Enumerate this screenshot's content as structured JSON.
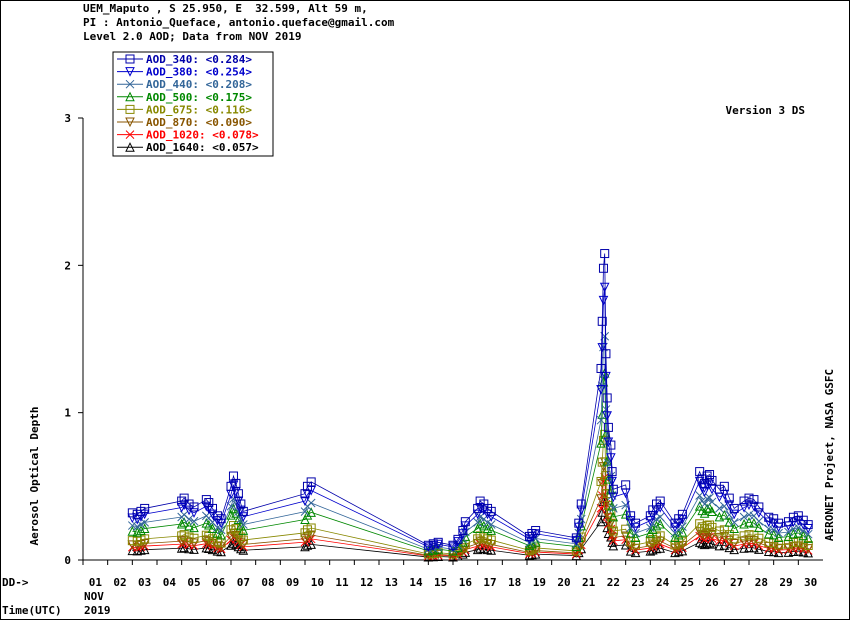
{
  "header": {
    "line1": "UEM_Maputo , S 25.950, E  32.599, Alt 59 m,",
    "line2": "PI : Antonio_Queface, antonio.queface@gmail.com",
    "line3": "Level 2.0 AOD; Data from NOV 2019"
  },
  "version_label": "Version 3 DS",
  "side_label": "AERONET Project, NASA GSFC",
  "xaxis": {
    "dd_label": "DD->",
    "month_label": "NOV",
    "year_label": "2019",
    "time_label": "Time(UTC)"
  },
  "chart_data": {
    "type": "scatter",
    "title": "UEM_Maputo Level 2.0 AOD, NOV 2019",
    "xlabel": "DD",
    "ylabel": "Aerosol Optical Depth",
    "ylim": [
      0,
      3
    ],
    "yticks": [
      "0",
      "1",
      "2",
      "3"
    ],
    "xlim": [
      1,
      31
    ],
    "day_ticks": [
      "01",
      "02",
      "03",
      "04",
      "05",
      "06",
      "07",
      "08",
      "09",
      "10",
      "11",
      "12",
      "13",
      "14",
      "15",
      "16",
      "17",
      "18",
      "19",
      "20",
      "21",
      "22",
      "23",
      "24",
      "25",
      "26",
      "27",
      "28",
      "29",
      "30"
    ],
    "legend": [
      {
        "name": "AOD_340",
        "mean": "<0.284>",
        "color": "#0000aa",
        "marker": "square"
      },
      {
        "name": "AOD_380",
        "mean": "<0.254>",
        "color": "#0000cc",
        "marker": "tri-down"
      },
      {
        "name": "AOD_440",
        "mean": "<0.208>",
        "color": "#336699",
        "marker": "x"
      },
      {
        "name": "AOD_500",
        "mean": "<0.175>",
        "color": "#008800",
        "marker": "tri-up"
      },
      {
        "name": "AOD_675",
        "mean": "<0.116>",
        "color": "#888800",
        "marker": "square"
      },
      {
        "name": "AOD_870",
        "mean": "<0.090>",
        "color": "#885500",
        "marker": "tri-down"
      },
      {
        "name": "AOD_1020",
        "mean": "<0.078>",
        "color": "#ff0000",
        "marker": "x"
      },
      {
        "name": "AOD_1640",
        "mean": "<0.057>",
        "color": "#000000",
        "marker": "tri-up"
      }
    ],
    "ratios": [
      1.0,
      0.89,
      0.73,
      0.61,
      0.41,
      0.32,
      0.27,
      0.2
    ],
    "aod340_observations": [
      [
        3.0,
        0.32
      ],
      [
        3.2,
        0.31
      ],
      [
        3.35,
        0.33
      ],
      [
        3.5,
        0.35
      ],
      [
        5.0,
        0.4
      ],
      [
        5.1,
        0.42
      ],
      [
        5.3,
        0.38
      ],
      [
        5.5,
        0.36
      ],
      [
        6.0,
        0.41
      ],
      [
        6.1,
        0.39
      ],
      [
        6.25,
        0.35
      ],
      [
        6.45,
        0.3
      ],
      [
        6.6,
        0.28
      ],
      [
        7.0,
        0.5
      ],
      [
        7.1,
        0.57
      ],
      [
        7.2,
        0.52
      ],
      [
        7.3,
        0.45
      ],
      [
        7.4,
        0.38
      ],
      [
        7.5,
        0.33
      ],
      [
        10.0,
        0.45
      ],
      [
        10.1,
        0.5
      ],
      [
        10.25,
        0.53
      ],
      [
        15.0,
        0.1
      ],
      [
        15.2,
        0.11
      ],
      [
        15.4,
        0.12
      ],
      [
        16.0,
        0.1
      ],
      [
        16.2,
        0.14
      ],
      [
        16.4,
        0.2
      ],
      [
        16.5,
        0.26
      ],
      [
        17.0,
        0.35
      ],
      [
        17.1,
        0.4
      ],
      [
        17.25,
        0.38
      ],
      [
        17.4,
        0.35
      ],
      [
        17.55,
        0.33
      ],
      [
        19.1,
        0.16
      ],
      [
        19.2,
        0.18
      ],
      [
        19.35,
        0.2
      ],
      [
        21.0,
        0.15
      ],
      [
        21.1,
        0.25
      ],
      [
        21.2,
        0.38
      ],
      [
        22.0,
        1.3
      ],
      [
        22.05,
        1.62
      ],
      [
        22.1,
        1.98
      ],
      [
        22.15,
        2.08
      ],
      [
        22.2,
        1.4
      ],
      [
        22.25,
        1.1
      ],
      [
        22.3,
        0.9
      ],
      [
        22.4,
        0.78
      ],
      [
        22.45,
        0.6
      ],
      [
        22.5,
        0.48
      ],
      [
        23.0,
        0.51
      ],
      [
        23.2,
        0.3
      ],
      [
        23.4,
        0.25
      ],
      [
        24.0,
        0.3
      ],
      [
        24.1,
        0.34
      ],
      [
        24.25,
        0.38
      ],
      [
        24.4,
        0.4
      ],
      [
        25.0,
        0.25
      ],
      [
        25.15,
        0.28
      ],
      [
        25.3,
        0.31
      ],
      [
        26.0,
        0.6
      ],
      [
        26.1,
        0.55
      ],
      [
        26.2,
        0.52
      ],
      [
        26.3,
        0.57
      ],
      [
        26.4,
        0.58
      ],
      [
        26.5,
        0.54
      ],
      [
        26.8,
        0.48
      ],
      [
        27.0,
        0.5
      ],
      [
        27.2,
        0.42
      ],
      [
        27.4,
        0.35
      ],
      [
        27.8,
        0.4
      ],
      [
        28.0,
        0.42
      ],
      [
        28.2,
        0.41
      ],
      [
        28.4,
        0.36
      ],
      [
        28.8,
        0.29
      ],
      [
        29.0,
        0.28
      ],
      [
        29.2,
        0.25
      ],
      [
        29.6,
        0.26
      ],
      [
        29.8,
        0.29
      ],
      [
        30.0,
        0.3
      ],
      [
        30.2,
        0.27
      ],
      [
        30.4,
        0.24
      ]
    ]
  }
}
